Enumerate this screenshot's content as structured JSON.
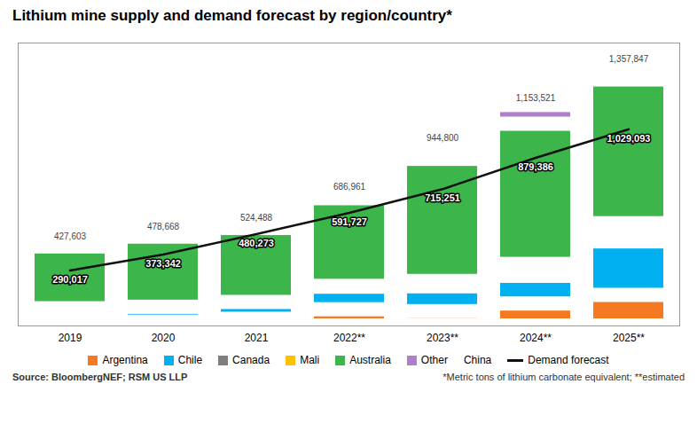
{
  "chart_data": {
    "type": "bar",
    "stacked": true,
    "title": "Lithium mine supply and demand forecast by region/country*",
    "categories": [
      "2019",
      "2020",
      "2021",
      "2022**",
      "2023**",
      "2024**",
      "2025**"
    ],
    "series": [
      {
        "name": "Argentina",
        "color": "#f47920",
        "values": [
          18000,
          20000,
          35000,
          85000,
          75000,
          115000,
          160000
        ]
      },
      {
        "name": "Chile",
        "color": "#00b0f0",
        "values": [
          72000,
          78000,
          88000,
          118000,
          130000,
          145000,
          280000
        ]
      },
      {
        "name": "Canada",
        "color": "#7f7f7f",
        "values": [
          0,
          0,
          0,
          0,
          20000,
          48000,
          55000
        ]
      },
      {
        "name": "Mali",
        "color": "#ffc000",
        "values": [
          0,
          0,
          0,
          4000,
          8000,
          14000,
          40000
        ]
      },
      {
        "name": "Australia",
        "color": "#3cb54a",
        "values": [
          323603,
          367000,
          387000,
          458961,
          638800,
          733521,
          752000
        ]
      },
      {
        "name": "Other",
        "color": "#b07fc9",
        "values": [
          14000,
          13668,
          14488,
          21000,
          73000,
          98000,
          70847
        ]
      },
      {
        "name": "China",
        "values": [
          null,
          null,
          null,
          null,
          null,
          null,
          null
        ]
      },
      {
        "name": "Demand forecast",
        "type": "line",
        "color": "#111111",
        "line_style": "solid",
        "values": [
          290017,
          373342,
          480273,
          591727,
          715251,
          879386,
          1029093
        ],
        "value_labels": [
          "290,017",
          "373,342",
          "480,273",
          "591,727",
          "715,251",
          "879,386",
          "1,029,093"
        ],
        "data_labels": true
      }
    ],
    "totals": [
      427603,
      478668,
      524488,
      686961,
      944800,
      1153521,
      1357847
    ],
    "total_labels": [
      "427,603",
      "478,668",
      "524,488",
      "686,961",
      "944,800",
      "1,153,521",
      "1,357,847"
    ],
    "ylim": [
      0,
      1480000
    ],
    "tick_labels": "x",
    "grid": false,
    "legend": "bottom",
    "annotations": [
      "Source: BloombergNEF; RSM US LLP",
      "*Metric tons of lithium carbonate equivalent; **estimated"
    ]
  }
}
